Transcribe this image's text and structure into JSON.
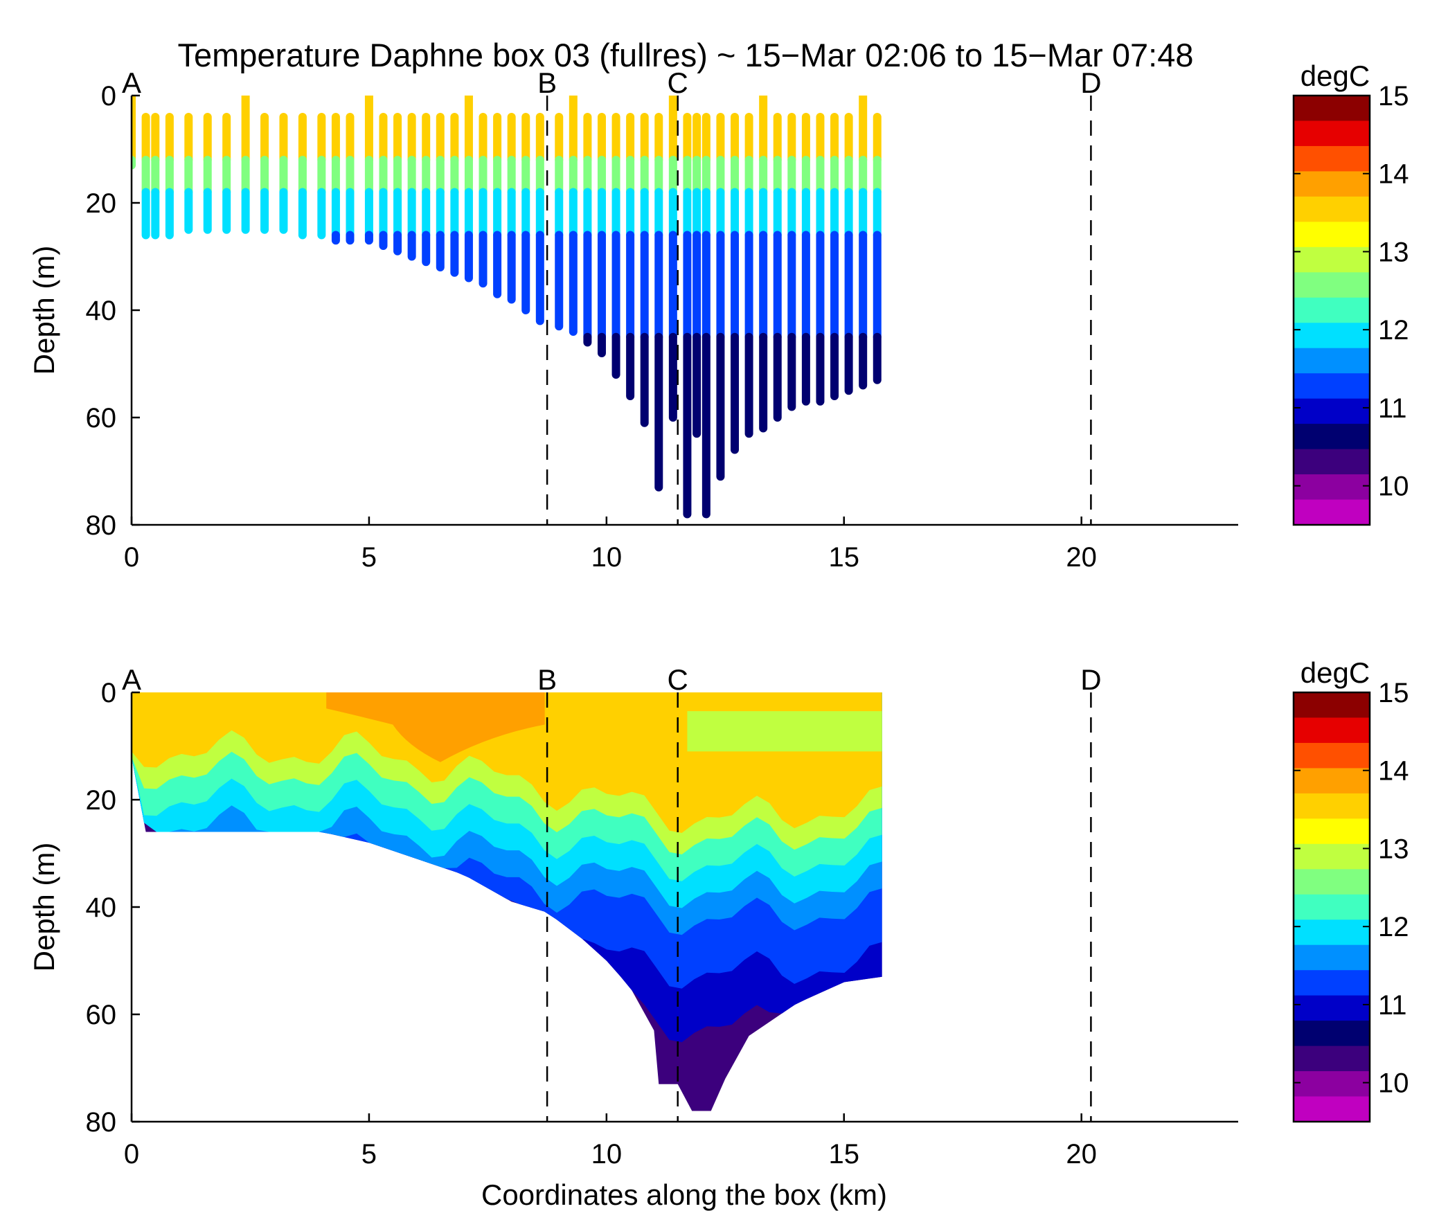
{
  "figure": {
    "title": "Temperature Daphne box 03 (fullres) ~ 15−Mar 02:06 to 15−Mar 07:48"
  },
  "colormap": [
    "#8c0000",
    "#e60000",
    "#ff5000",
    "#ffa000",
    "#ffd000",
    "#ffff00",
    "#c0ff40",
    "#80ff80",
    "#40ffc0",
    "#00e0ff",
    "#0090ff",
    "#0040ff",
    "#0000c8",
    "#000070",
    "#3c007d",
    "#8c00a0",
    "#c000c0"
  ],
  "chart_data": [
    {
      "type": "scatter",
      "name": "top-panel",
      "xlabel": "",
      "ylabel": "Depth (m)",
      "xlim": [
        0,
        23.3
      ],
      "ylim": [
        80,
        0
      ],
      "xticks": [
        0,
        5,
        10,
        15,
        20
      ],
      "yticks": [
        0,
        20,
        40,
        60,
        80
      ],
      "grid": false,
      "markers": [
        {
          "label": "A",
          "x": 0
        },
        {
          "label": "B",
          "x": 8.75
        },
        {
          "label": "C",
          "x": 11.5
        },
        {
          "label": "D",
          "x": 20.2
        }
      ],
      "colorbar": {
        "label": "degC",
        "range": [
          9.5,
          15
        ],
        "ticks": [
          10,
          11,
          12,
          13,
          14,
          15
        ]
      },
      "profiles_bottom_depth": [
        [
          0.0,
          13
        ],
        [
          0.3,
          26
        ],
        [
          0.5,
          26
        ],
        [
          0.8,
          26
        ],
        [
          1.2,
          25
        ],
        [
          1.6,
          25
        ],
        [
          2.0,
          25
        ],
        [
          2.4,
          25
        ],
        [
          2.8,
          25
        ],
        [
          3.2,
          25
        ],
        [
          3.6,
          26
        ],
        [
          4.0,
          26
        ],
        [
          4.3,
          27
        ],
        [
          4.6,
          27
        ],
        [
          5.0,
          27
        ],
        [
          5.3,
          28
        ],
        [
          5.6,
          29
        ],
        [
          5.9,
          30
        ],
        [
          6.2,
          31
        ],
        [
          6.5,
          32
        ],
        [
          6.8,
          33
        ],
        [
          7.1,
          34
        ],
        [
          7.4,
          35
        ],
        [
          7.7,
          37
        ],
        [
          8.0,
          38
        ],
        [
          8.3,
          40
        ],
        [
          8.6,
          42
        ],
        [
          9.0,
          43
        ],
        [
          9.3,
          44
        ],
        [
          9.6,
          46
        ],
        [
          9.9,
          48
        ],
        [
          10.2,
          52
        ],
        [
          10.5,
          56
        ],
        [
          10.8,
          61
        ],
        [
          11.1,
          73
        ],
        [
          11.4,
          60
        ],
        [
          11.7,
          78
        ],
        [
          11.9,
          63
        ],
        [
          12.1,
          78
        ],
        [
          12.4,
          71
        ],
        [
          12.7,
          66
        ],
        [
          13.0,
          63
        ],
        [
          13.3,
          62
        ],
        [
          13.6,
          60
        ],
        [
          13.9,
          58
        ],
        [
          14.2,
          57
        ],
        [
          14.5,
          57
        ],
        [
          14.8,
          56
        ],
        [
          15.1,
          55
        ],
        [
          15.4,
          54
        ],
        [
          15.7,
          53
        ]
      ],
      "temperature_layers": [
        {
          "top_depth": 0,
          "bottom_depth": 12,
          "temperature": 13.6
        },
        {
          "top_depth": 12,
          "bottom_depth": 18,
          "temperature": 12.6
        },
        {
          "top_depth": 18,
          "bottom_depth": 26,
          "temperature": 11.8
        },
        {
          "top_depth": 26,
          "bottom_depth": 45,
          "temperature": 11.3
        },
        {
          "top_depth": 45,
          "bottom_depth": 80,
          "temperature": 10.5
        }
      ]
    },
    {
      "type": "heatmap",
      "name": "bottom-panel",
      "xlabel": "Coordinates along the box (km)",
      "ylabel": "Depth (m)",
      "xlim": [
        0,
        23.3
      ],
      "ylim": [
        80,
        0
      ],
      "xticks": [
        0,
        5,
        10,
        15,
        20
      ],
      "yticks": [
        0,
        20,
        40,
        60,
        80
      ],
      "grid": false,
      "markers": [
        {
          "label": "A",
          "x": 0
        },
        {
          "label": "B",
          "x": 8.75
        },
        {
          "label": "C",
          "x": 11.5
        },
        {
          "label": "D",
          "x": 20.2
        }
      ],
      "colorbar": {
        "label": "degC",
        "range": [
          9.5,
          15
        ],
        "ticks": [
          10,
          11,
          12,
          13,
          14,
          15
        ]
      },
      "bottom_boundary": [
        [
          0.0,
          12
        ],
        [
          0.3,
          26
        ],
        [
          4.0,
          26
        ],
        [
          5.0,
          28
        ],
        [
          6.0,
          31
        ],
        [
          7.0,
          34
        ],
        [
          8.0,
          39
        ],
        [
          8.75,
          41
        ],
        [
          9.5,
          46
        ],
        [
          10.0,
          50
        ],
        [
          10.5,
          55
        ],
        [
          11.0,
          63
        ],
        [
          11.1,
          73
        ],
        [
          11.5,
          73
        ],
        [
          11.8,
          78
        ],
        [
          12.2,
          78
        ],
        [
          12.5,
          72
        ],
        [
          13.0,
          64
        ],
        [
          14.0,
          58
        ],
        [
          15.0,
          54
        ],
        [
          15.8,
          53
        ]
      ],
      "surface_extent_km": 15.8
    }
  ]
}
